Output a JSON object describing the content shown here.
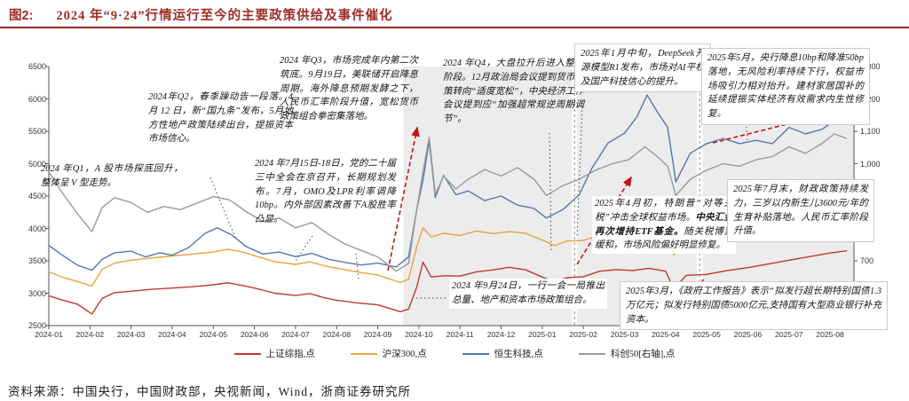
{
  "figure": {
    "prefix": "图2:",
    "title": "2024 年“9·24”行情运行至今的主要政策供给及事件催化"
  },
  "source_line": "资料来源：中国央行，中国财政部，央视新闻，Wind，浙商证券研究所",
  "legend": [
    {
      "label": "上证综指,点",
      "color": "#c0392f"
    },
    {
      "label": "沪深300,点",
      "color": "#e8a33d"
    },
    {
      "label": "恒生科技,点",
      "color": "#5577ad"
    },
    {
      "label": "科创50[右轴],点",
      "color": "#9a9a9a"
    }
  ],
  "annotations": [
    {
      "id": "2024-q1",
      "text": "2024 年Q1，A 股市场探底回升，整体呈 V 型走势。"
    },
    {
      "id": "2024-q2",
      "text": "2024年Q2，春季躁动告一段落。4 月 12 日，新“国九条”发布，5月地方性地产政策陆续出台，提振资本市场信心。"
    },
    {
      "id": "2024-july-plenum",
      "text": "2024 年7月15日-18日，党的二十届三中全会在京召开，长期规划发布。7月，OMO及LPR利率调降10bp。内外部因素改善下A股胜率凸显。"
    },
    {
      "id": "2024-q3",
      "text": "2024 年Q3，市场完成年内第二次筑底。9月19日，美联储开启降息周期。海外降息预期发酵之下，人民币汇率阶段升值，宽松货币政策组合拳密集落地。"
    },
    {
      "id": "2024-q4",
      "text": "2024 年Q4，大盘拉升后进入整固阶段。12月政治局会议提到货币政策转向“适度宽松”，中央经济工作会议提到应“加强超常规逆周期调节”。"
    },
    {
      "id": "2025-jan-deepseek",
      "text": "2025年1月中旬，DeepSeek开源模型R1发布，市场对AI平权及国产科技信心的提升。"
    },
    {
      "id": "2025-may",
      "text": "2025年5月，央行降息10bp和降准50bp落地，无风险利率持续下行，权益市场吸引力相对抬升。建材家居国补的延续提振实体经济有效需求内生性修复。"
    },
    {
      "id": "2025-april-tariff",
      "pre": "2025年4月初，特朗普“对等关税”冲击全球权益市场。",
      "bold": "中央汇金再次增持ETF基金。",
      "post": "随关税博弈缓和，市场风险偏好明显修复。"
    },
    {
      "id": "2025-july-end",
      "text": "2025年7月末，财政政策持续发力，三岁以内新生儿3600元/年的生育补贴落地。人民币汇率阶段升值。"
    },
    {
      "id": "2024-sep24",
      "text": "2024 年9月24日，一行一会一局推出总量、地产和资本市场政策组合。"
    },
    {
      "id": "2025-march",
      "text": "2025年3月，《政府工作报告》表示“拟发行超长期特别国债1.3万亿元；拟发行特别国债5000亿元,支持国有大型商业银行补充资本。"
    }
  ],
  "chart_data": {
    "type": "line",
    "title": "2024 年“9·24”行情运行至今的主要政策供给及事件催化",
    "x_ticks": [
      "2024-01",
      "2024-02",
      "2024-03",
      "2024-04",
      "2024-05",
      "2024-06",
      "2024-07",
      "2024-08",
      "2024-09",
      "2024-10",
      "2024-11",
      "2024-12",
      "2025-01",
      "2025-02",
      "2025-03",
      "2025-04",
      "2025-05",
      "2025-06",
      "2025-07",
      "2025-08"
    ],
    "left_axis": {
      "min": 2500,
      "max": 6500,
      "ticks": [
        2500,
        3000,
        3500,
        4000,
        4500,
        5000,
        5500,
        6000,
        6500
      ],
      "tick_labels": [
        "2500",
        "3000",
        "3500",
        "4000",
        "4500",
        "5000",
        "5500",
        "6000",
        "6500"
      ]
    },
    "right_axis": {
      "min": 500,
      "max": 1300,
      "ticks": [
        500,
        600,
        700,
        800,
        900,
        1000,
        1100,
        1200,
        1300
      ],
      "tick_labels": [
        "500",
        "600",
        "700",
        "800",
        "900",
        "1,000",
        "1,100",
        "1,200",
        "1,300"
      ]
    },
    "shaded_phases_t": [
      [
        8.62,
        12.72
      ],
      [
        12.85,
        15.76
      ],
      [
        15.9,
        19.58
      ]
    ],
    "series": [
      {
        "name": "上证综指,点",
        "axis": "left",
        "color": "#c0392f",
        "points": [
          [
            0,
            2960
          ],
          [
            0.3,
            2900
          ],
          [
            0.7,
            2830
          ],
          [
            1.05,
            2680
          ],
          [
            1.3,
            2920
          ],
          [
            1.6,
            3010
          ],
          [
            2,
            3030
          ],
          [
            2.5,
            3060
          ],
          [
            3,
            3080
          ],
          [
            3.5,
            3100
          ],
          [
            4,
            3130
          ],
          [
            4.35,
            3160
          ],
          [
            4.7,
            3120
          ],
          [
            5,
            3080
          ],
          [
            5.5,
            3000
          ],
          [
            6,
            2965
          ],
          [
            6.35,
            2995
          ],
          [
            6.7,
            2930
          ],
          [
            7,
            2890
          ],
          [
            7.5,
            2850
          ],
          [
            8,
            2820
          ],
          [
            8.55,
            2715
          ],
          [
            8.75,
            2755
          ],
          [
            8.95,
            3100
          ],
          [
            9.1,
            3480
          ],
          [
            9.3,
            3250
          ],
          [
            9.6,
            3270
          ],
          [
            10,
            3265
          ],
          [
            10.4,
            3330
          ],
          [
            10.8,
            3360
          ],
          [
            11.2,
            3400
          ],
          [
            11.6,
            3360
          ],
          [
            12,
            3250
          ],
          [
            12.3,
            3180
          ],
          [
            12.6,
            3240
          ],
          [
            13,
            3255
          ],
          [
            13.4,
            3340
          ],
          [
            13.8,
            3365
          ],
          [
            14.2,
            3350
          ],
          [
            14.6,
            3385
          ],
          [
            15,
            3340
          ],
          [
            15.2,
            3065
          ],
          [
            15.5,
            3275
          ],
          [
            16,
            3290
          ],
          [
            16.5,
            3350
          ],
          [
            17,
            3395
          ],
          [
            17.5,
            3450
          ],
          [
            18,
            3510
          ],
          [
            18.5,
            3565
          ],
          [
            19,
            3620
          ],
          [
            19.4,
            3655
          ]
        ]
      },
      {
        "name": "沪深300,点",
        "axis": "left",
        "color": "#e8a33d",
        "points": [
          [
            0,
            3330
          ],
          [
            0.3,
            3255
          ],
          [
            0.7,
            3180
          ],
          [
            1.05,
            3110
          ],
          [
            1.3,
            3370
          ],
          [
            1.6,
            3465
          ],
          [
            2,
            3510
          ],
          [
            2.5,
            3545
          ],
          [
            3,
            3575
          ],
          [
            3.5,
            3605
          ],
          [
            4,
            3635
          ],
          [
            4.35,
            3680
          ],
          [
            4.7,
            3640
          ],
          [
            5,
            3580
          ],
          [
            5.5,
            3485
          ],
          [
            6,
            3445
          ],
          [
            6.35,
            3485
          ],
          [
            6.7,
            3425
          ],
          [
            7,
            3385
          ],
          [
            7.5,
            3330
          ],
          [
            8,
            3280
          ],
          [
            8.55,
            3165
          ],
          [
            8.75,
            3215
          ],
          [
            8.95,
            3720
          ],
          [
            9.1,
            4010
          ],
          [
            9.3,
            3870
          ],
          [
            9.6,
            3925
          ],
          [
            10,
            3890
          ],
          [
            10.4,
            3960
          ],
          [
            10.8,
            3920
          ],
          [
            11.2,
            3950
          ],
          [
            11.6,
            3925
          ],
          [
            12,
            3820
          ],
          [
            12.3,
            3735
          ],
          [
            12.6,
            3805
          ],
          [
            13,
            3815
          ],
          [
            13.4,
            3900
          ],
          [
            13.8,
            3925
          ],
          [
            14.2,
            3930
          ],
          [
            14.6,
            3945
          ],
          [
            15,
            3905
          ],
          [
            15.2,
            3595
          ],
          [
            15.5,
            3765
          ],
          [
            16,
            3830
          ],
          [
            16.5,
            3855
          ],
          [
            17,
            3885
          ],
          [
            17.5,
            3940
          ],
          [
            18,
            3995
          ],
          [
            18.5,
            4050
          ],
          [
            19,
            4120
          ],
          [
            19.4,
            4185
          ]
        ]
      },
      {
        "name": "恒生科技,点",
        "axis": "left",
        "color": "#5577ad",
        "points": [
          [
            0,
            3740
          ],
          [
            0.3,
            3600
          ],
          [
            0.7,
            3430
          ],
          [
            1.05,
            3355
          ],
          [
            1.3,
            3525
          ],
          [
            1.6,
            3625
          ],
          [
            2,
            3650
          ],
          [
            2.35,
            3560
          ],
          [
            2.7,
            3625
          ],
          [
            3,
            3585
          ],
          [
            3.4,
            3705
          ],
          [
            3.8,
            3925
          ],
          [
            4.1,
            4010
          ],
          [
            4.45,
            3900
          ],
          [
            4.8,
            3720
          ],
          [
            5.2,
            3605
          ],
          [
            5.6,
            3635
          ],
          [
            6,
            3565
          ],
          [
            6.4,
            3615
          ],
          [
            6.8,
            3525
          ],
          [
            7.2,
            3475
          ],
          [
            7.6,
            3435
          ],
          [
            8,
            3465
          ],
          [
            8.45,
            3405
          ],
          [
            8.75,
            3560
          ],
          [
            8.95,
            4300
          ],
          [
            9.1,
            4750
          ],
          [
            9.25,
            5350
          ],
          [
            9.4,
            4480
          ],
          [
            9.6,
            4820
          ],
          [
            9.9,
            4520
          ],
          [
            10.2,
            4580
          ],
          [
            10.6,
            4430
          ],
          [
            11,
            4500
          ],
          [
            11.4,
            4360
          ],
          [
            11.8,
            4310
          ],
          [
            12.1,
            4160
          ],
          [
            12.5,
            4290
          ],
          [
            12.9,
            4520
          ],
          [
            13.2,
            4920
          ],
          [
            13.6,
            5320
          ],
          [
            14,
            5470
          ],
          [
            14.3,
            5720
          ],
          [
            14.55,
            6060
          ],
          [
            14.8,
            5800
          ],
          [
            15.05,
            5560
          ],
          [
            15.25,
            4720
          ],
          [
            15.6,
            5160
          ],
          [
            16,
            5310
          ],
          [
            16.4,
            5390
          ],
          [
            16.8,
            5310
          ],
          [
            17.2,
            5360
          ],
          [
            17.6,
            5310
          ],
          [
            18,
            5560
          ],
          [
            18.4,
            5460
          ],
          [
            18.8,
            5530
          ],
          [
            19.1,
            5660
          ],
          [
            19.4,
            5620
          ]
        ]
      },
      {
        "name": "科创50[右轴],点",
        "axis": "right",
        "color": "#9a9a9a",
        "points": [
          [
            0,
            975
          ],
          [
            0.3,
            915
          ],
          [
            0.7,
            845
          ],
          [
            1.05,
            790
          ],
          [
            1.3,
            865
          ],
          [
            1.6,
            895
          ],
          [
            2,
            880
          ],
          [
            2.4,
            850
          ],
          [
            2.8,
            868
          ],
          [
            3.2,
            858
          ],
          [
            3.6,
            878
          ],
          [
            4,
            898
          ],
          [
            4.4,
            888
          ],
          [
            4.8,
            852
          ],
          [
            5.2,
            822
          ],
          [
            5.6,
            832
          ],
          [
            6,
            802
          ],
          [
            6.4,
            818
          ],
          [
            6.8,
            782
          ],
          [
            7.2,
            752
          ],
          [
            7.6,
            732
          ],
          [
            8,
            712
          ],
          [
            8.45,
            668
          ],
          [
            8.75,
            692
          ],
          [
            8.95,
            860
          ],
          [
            9.1,
            975
          ],
          [
            9.25,
            1082
          ],
          [
            9.4,
            905
          ],
          [
            9.6,
            962
          ],
          [
            9.9,
            922
          ],
          [
            10.2,
            952
          ],
          [
            10.6,
            982
          ],
          [
            11,
            962
          ],
          [
            11.4,
            988
          ],
          [
            11.8,
            952
          ],
          [
            12.1,
            902
          ],
          [
            12.5,
            932
          ],
          [
            12.9,
            952
          ],
          [
            13.3,
            980
          ],
          [
            13.7,
            1000
          ],
          [
            14.1,
            1012
          ],
          [
            14.5,
            1052
          ],
          [
            14.8,
            1022
          ],
          [
            15.05,
            992
          ],
          [
            15.25,
            902
          ],
          [
            15.6,
            952
          ],
          [
            16,
            980
          ],
          [
            16.4,
            1000
          ],
          [
            16.8,
            992
          ],
          [
            17.2,
            1012
          ],
          [
            17.6,
            1022
          ],
          [
            18,
            1052
          ],
          [
            18.4,
            1032
          ],
          [
            18.8,
            1062
          ],
          [
            19.1,
            1092
          ],
          [
            19.4,
            1078
          ]
        ]
      }
    ]
  }
}
